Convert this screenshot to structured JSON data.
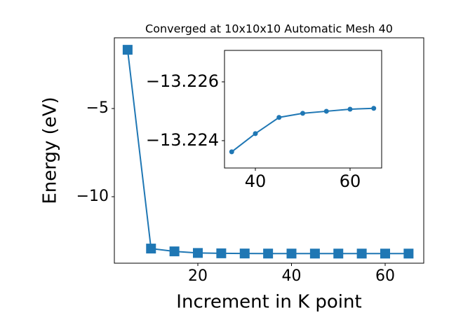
{
  "chart_data": [
    {
      "type": "line",
      "title": "Converged at 10x10x10 Automatic Mesh 40",
      "xlabel": "Increment in K point",
      "ylabel": "Energy (eV)",
      "x": [
        5,
        10,
        15,
        20,
        25,
        30,
        35,
        40,
        45,
        50,
        55,
        60,
        65
      ],
      "series": [
        {
          "name": "Energy",
          "color": "#1f77b4",
          "marker": "square",
          "values": [
            -1.67,
            -12.94,
            -13.1,
            -13.19,
            -13.21,
            -13.22,
            -13.2236,
            -13.2242,
            -13.2248,
            -13.2249,
            -13.225,
            -13.2251,
            -13.2251
          ]
        }
      ],
      "xlim": [
        2.17,
        68.24
      ],
      "ylim": [
        -13.77,
        -0.99
      ],
      "xticks": [
        20,
        40,
        60
      ],
      "yticks": [
        {
          "value": -10,
          "label": "−10"
        },
        {
          "value": -5,
          "label": "−5"
        }
      ]
    },
    {
      "type": "line",
      "x": [
        35,
        40,
        45,
        50,
        55,
        60,
        65
      ],
      "series": [
        {
          "name": "Energy",
          "color": "#1f77b4",
          "marker": "circle",
          "values": [
            -13.22362,
            -13.22424,
            -13.22479,
            -13.22493,
            -13.225,
            -13.22507,
            -13.2251
          ]
        }
      ],
      "xlim": [
        33.48,
        66.67
      ],
      "ylim": [
        -13.22307,
        -13.22707
      ],
      "xticks": [
        40,
        60
      ],
      "yticks": [
        {
          "value": -13.226,
          "label": "−13.226"
        },
        {
          "value": -13.224,
          "label": "−13.224"
        }
      ]
    }
  ]
}
